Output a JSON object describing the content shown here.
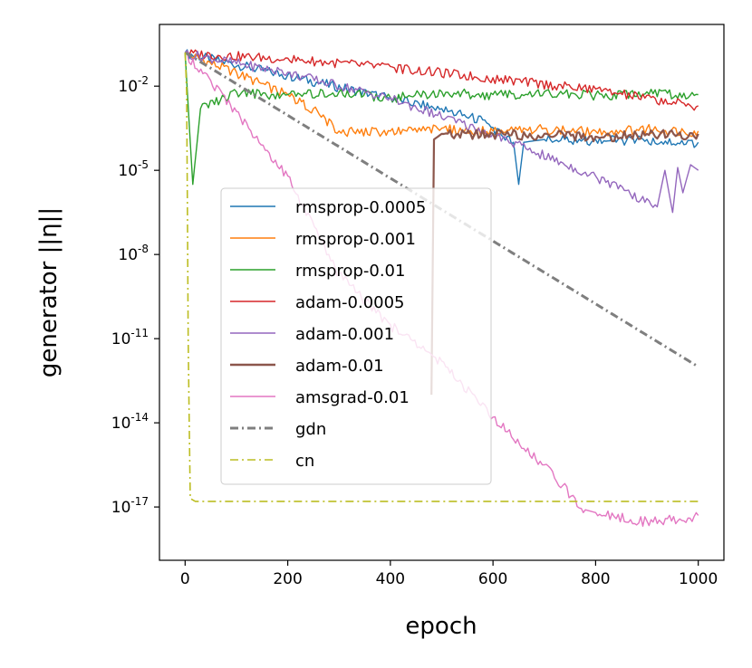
{
  "chart_data": {
    "type": "line",
    "title": "",
    "xlabel": "epoch",
    "ylabel": "generator ||η||",
    "xlim": [
      -50,
      1050
    ],
    "ylog_exp_range": [
      -18.9,
      0.2
    ],
    "x_ticks": [
      0,
      200,
      400,
      600,
      800,
      1000
    ],
    "y_ticks": [
      {
        "exp": -2,
        "label": "10",
        "sup": "-2"
      },
      {
        "exp": -5,
        "label": "10",
        "sup": "-5"
      },
      {
        "exp": -8,
        "label": "10",
        "sup": "-8"
      },
      {
        "exp": -11,
        "label": "10",
        "sup": "-11"
      },
      {
        "exp": -14,
        "label": "10",
        "sup": "-14"
      },
      {
        "exp": -17,
        "label": "10",
        "sup": "-17"
      }
    ],
    "grid": false,
    "legend_position": "center-left",
    "series": [
      {
        "name": "rmsprop-0.0005",
        "color": "#1f77b4",
        "style": "solid",
        "x": [
          0,
          200,
          400,
          500,
          580,
          640,
          650,
          660,
          700,
          800,
          900,
          1000
        ],
        "log10_y": [
          -0.8,
          -1.6,
          -2.4,
          -2.8,
          -3.2,
          -4.0,
          -5.5,
          -4.0,
          -3.9,
          -3.9,
          -3.9,
          -4.0
        ]
      },
      {
        "name": "rmsprop-0.001",
        "color": "#ff7f0e",
        "style": "solid",
        "x": [
          0,
          100,
          200,
          250,
          300,
          400,
          500,
          600,
          700,
          800,
          900,
          1000
        ],
        "log10_y": [
          -0.8,
          -1.5,
          -2.3,
          -2.8,
          -3.6,
          -3.6,
          -3.5,
          -3.6,
          -3.5,
          -3.6,
          -3.5,
          -3.6
        ]
      },
      {
        "name": "rmsprop-0.01",
        "color": "#2ca02c",
        "style": "solid",
        "x": [
          0,
          10,
          15,
          30,
          100,
          200,
          300,
          400,
          500,
          600,
          700,
          800,
          900,
          1000
        ],
        "log10_y": [
          -0.8,
          -4.0,
          -5.5,
          -2.8,
          -2.2,
          -2.3,
          -2.2,
          -2.4,
          -2.2,
          -2.3,
          -2.2,
          -2.3,
          -2.2,
          -2.3
        ]
      },
      {
        "name": "adam-0.0005",
        "color": "#d62728",
        "style": "solid",
        "x": [
          0,
          200,
          400,
          600,
          800,
          1000
        ],
        "log10_y": [
          -0.8,
          -1.0,
          -1.3,
          -1.7,
          -2.1,
          -2.7
        ]
      },
      {
        "name": "adam-0.001",
        "color": "#9467bd",
        "style": "solid",
        "x": [
          0,
          200,
          400,
          600,
          800,
          920,
          935,
          950,
          960,
          970,
          985,
          1000
        ],
        "log10_y": [
          -0.8,
          -1.5,
          -2.4,
          -3.7,
          -5.2,
          -6.3,
          -5.0,
          -6.5,
          -4.9,
          -5.8,
          -4.8,
          -5.0
        ]
      },
      {
        "name": "adam-0.01",
        "color": "#8c564b",
        "style": "solid",
        "x": [
          480,
          485,
          500,
          600,
          700,
          800,
          900,
          1000
        ],
        "log10_y": [
          -13.0,
          -3.9,
          -3.7,
          -3.7,
          -3.7,
          -3.8,
          -3.7,
          -3.7
        ]
      },
      {
        "name": "amsgrad-0.01",
        "color": "#e377c2",
        "style": "solid",
        "x": [
          0,
          50,
          100,
          200,
          300,
          400,
          500,
          600,
          700,
          780,
          800,
          900,
          1000
        ],
        "log10_y": [
          -0.8,
          -1.8,
          -2.9,
          -5.2,
          -8.7,
          -10.5,
          -11.8,
          -13.8,
          -15.5,
          -17.1,
          -17.2,
          -17.5,
          -17.3
        ]
      },
      {
        "name": "gdn",
        "color": "#7f7f7f",
        "style": "dashdot",
        "x": [
          0,
          1000
        ],
        "log10_y": [
          -0.8,
          -12.0
        ]
      },
      {
        "name": "cn",
        "color": "#bcbd22",
        "style": "dashdot",
        "x": [
          0,
          3,
          6,
          10,
          20,
          200,
          400,
          600,
          800,
          1000
        ],
        "log10_y": [
          -0.8,
          -2.2,
          -11.0,
          -16.7,
          -16.8,
          -16.8,
          -16.8,
          -16.8,
          -16.8,
          -16.8
        ]
      }
    ]
  }
}
